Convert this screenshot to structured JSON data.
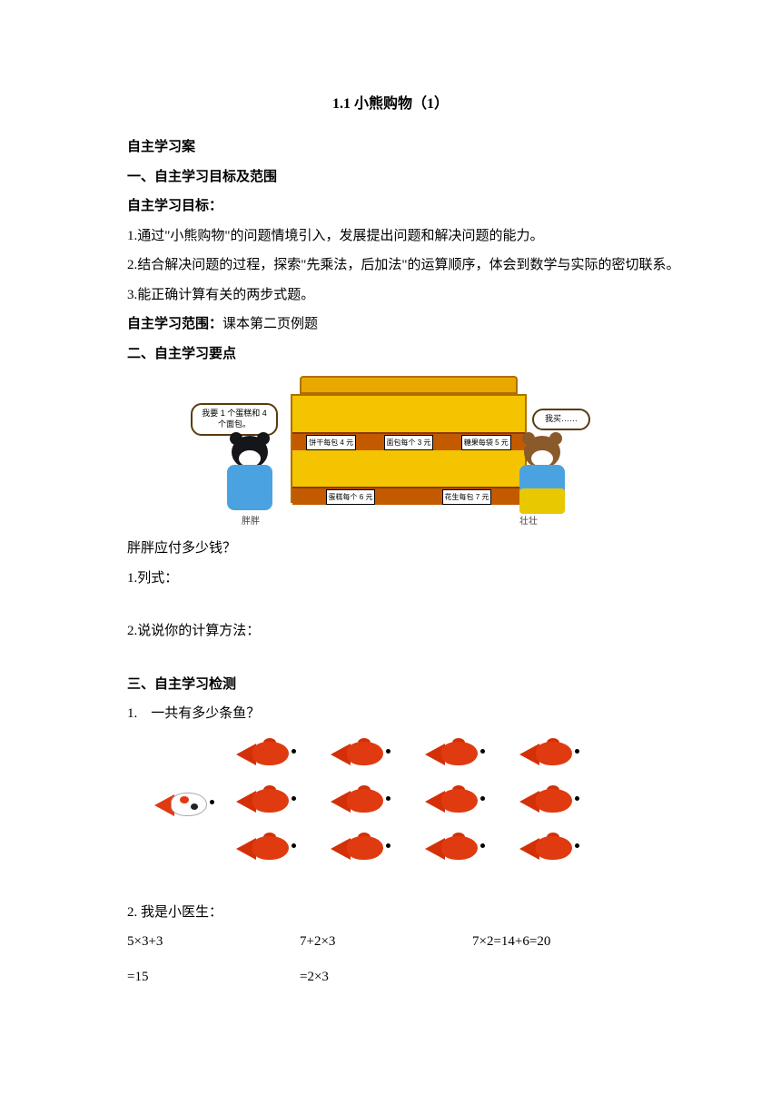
{
  "title": "1.1 小熊购物（1）",
  "section_case": "自主学习案",
  "section1_heading": "一、自主学习目标及范围",
  "goals_heading": "自主学习目标：",
  "goal1": "1.通过\"小熊购物\"的问题情境引入，发展提出问题和解决问题的能力。",
  "goal2": "2.结合解决问题的过程，探索\"先乘法，后加法\"的运算顺序，体会到数学与实际的密切联系。",
  "goal3": "3.能正确计算有关的两步式题。",
  "scope_label": "自主学习范围：",
  "scope_value": "课本第二页例题",
  "section2_heading": "二、自主学习要点",
  "shop": {
    "speech_left": "我要 1 个蛋糕和 4 个面包。",
    "speech_right": "我买……",
    "row1_items": [
      "饼干每包 4 元",
      "面包每个 3 元",
      "糖果每袋 5 元"
    ],
    "row2_items": [
      "蛋糕每个 6 元",
      "花生每包 7 元"
    ],
    "label_left": "胖胖",
    "label_right": "壮壮"
  },
  "question_main": "胖胖应付多少钱？",
  "step1": "1.列式：",
  "step2": "2.说说你的计算方法：",
  "section3_heading": "三、自主学习检测",
  "q1": "1.　一共有多少条鱼？",
  "q2": "2. 我是小医生：",
  "equations": {
    "col1_line1": "5×3+3",
    "col1_line2": "=15",
    "col2_line1": "7+2×3",
    "col2_line2": "=2×3",
    "col3_line1": "7×2=14+6=20"
  },
  "colors": {
    "shelf_main": "#f4c400",
    "shelf_top": "#e8a800",
    "shelf_row": "#c45a00",
    "fish_body": "#e03a10",
    "fish_tail": "#d43008",
    "bear_dark": "#15161a",
    "bear_brown": "#8a5a2a",
    "bear_shirt": "#4aa3e0",
    "bear_pants": "#e8c800"
  }
}
